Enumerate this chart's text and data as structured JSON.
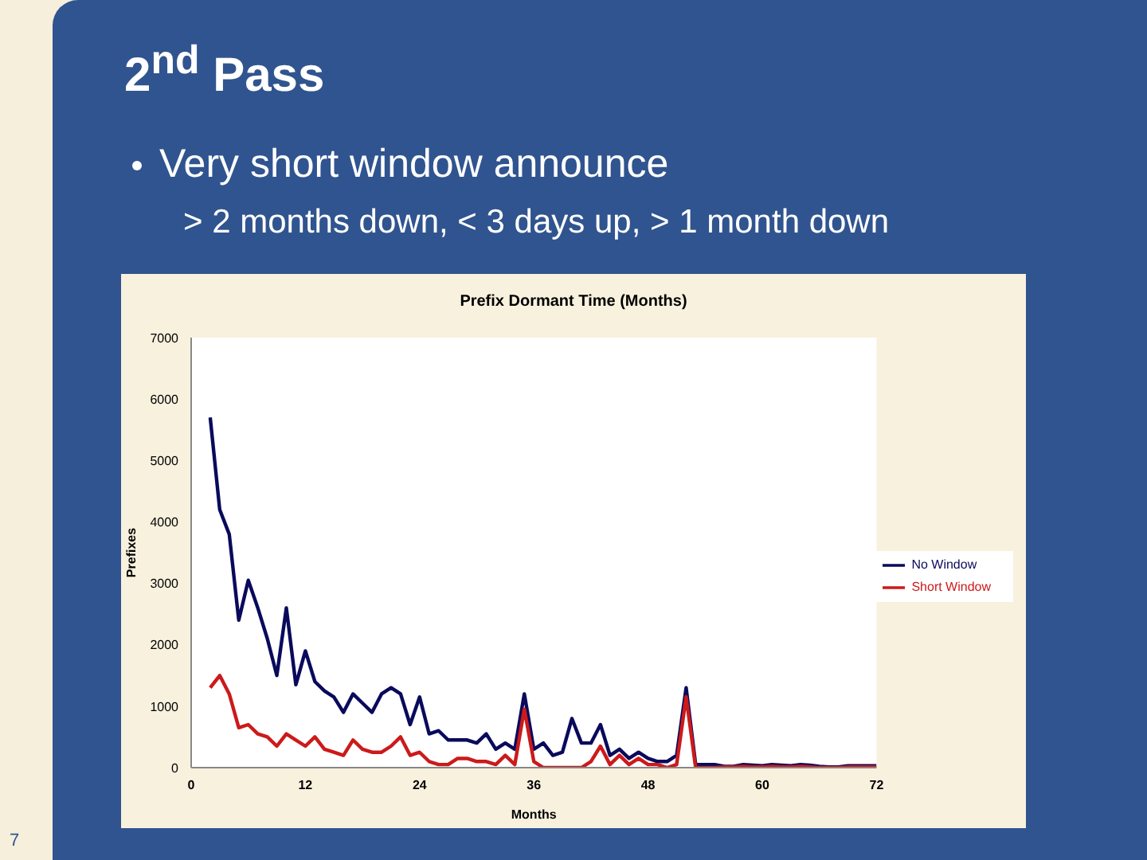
{
  "chart_data": {
    "type": "line",
    "title": "Prefix Dormant Time (Months)",
    "xlabel": "Months",
    "ylabel": "Prefixes",
    "annotations": [
      "2$^{nd}$ Pass",
      "Very short window announce",
      "> 2 months down, < 3 days up, > 1 month down",
      "7"
    ],
    "x": [
      2,
      3,
      4,
      5,
      6,
      7,
      8,
      9,
      10,
      11,
      12,
      13,
      14,
      15,
      16,
      17,
      18,
      19,
      20,
      21,
      22,
      23,
      24,
      25,
      26,
      27,
      28,
      29,
      30,
      31,
      32,
      33,
      34,
      35,
      36,
      37,
      38,
      39,
      40,
      41,
      42,
      43,
      44,
      45,
      46,
      47,
      48,
      49,
      50,
      51,
      52,
      53,
      54,
      55,
      56,
      57,
      58,
      59,
      60,
      61,
      62,
      63,
      64,
      65,
      66,
      67,
      68,
      69,
      70,
      71,
      72
    ],
    "series": [
      {
        "name": "No Window",
        "color": "#0a0a5c",
        "values": [
          5700,
          4200,
          3800,
          2400,
          3050,
          2600,
          2100,
          1500,
          2600,
          1350,
          1900,
          1400,
          1250,
          1150,
          900,
          1200,
          1050,
          900,
          1200,
          1300,
          1200,
          700,
          1150,
          550,
          600,
          450,
          450,
          450,
          400,
          550,
          300,
          400,
          300,
          1200,
          300,
          400,
          200,
          250,
          800,
          400,
          400,
          700,
          200,
          300,
          150,
          250,
          150,
          100,
          100,
          200,
          1300,
          50,
          50,
          50,
          20,
          20,
          50,
          40,
          30,
          50,
          40,
          30,
          50,
          40,
          20,
          10,
          10,
          30,
          30,
          30,
          30
        ]
      },
      {
        "name": "Short Window",
        "color": "#cc1a1a",
        "values": [
          1300,
          1500,
          1200,
          650,
          700,
          550,
          500,
          350,
          550,
          450,
          350,
          500,
          300,
          250,
          200,
          450,
          300,
          250,
          250,
          350,
          500,
          200,
          250,
          100,
          50,
          50,
          150,
          150,
          100,
          100,
          50,
          200,
          50,
          950,
          100,
          0,
          0,
          0,
          0,
          0,
          100,
          350,
          50,
          200,
          50,
          150,
          50,
          50,
          0,
          50,
          1150,
          0,
          0,
          0,
          10,
          10,
          20,
          10,
          10,
          20,
          10,
          10,
          20,
          10,
          0,
          0,
          0,
          10,
          10,
          10,
          10
        ]
      }
    ],
    "xlim": [
      0,
      72
    ],
    "xticks": [
      0,
      12,
      24,
      36,
      48,
      60,
      72
    ],
    "ylim": [
      0,
      7000
    ],
    "yticks": [
      0,
      1000,
      2000,
      3000,
      4000,
      5000,
      6000,
      7000
    ],
    "grid": false,
    "legend": "right",
    "marker": "none",
    "line_style": "solid"
  }
}
